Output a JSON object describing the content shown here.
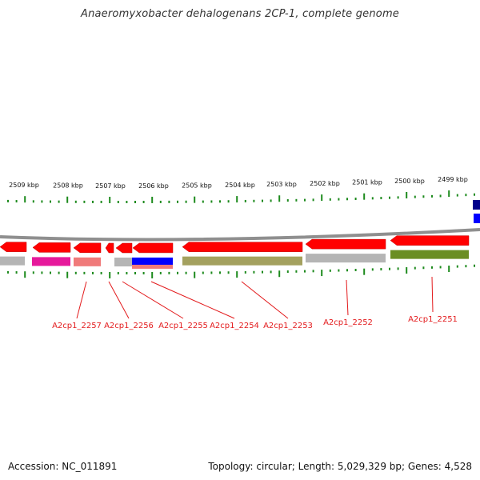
{
  "title": "Anaeromyxobacter dehalogenans 2CP-1, complete genome",
  "footer": {
    "accession": "Accession: NC_011891",
    "summary": "Topology: circular; Length: 5,029,329 bp; Genes: 4,528"
  },
  "colors": {
    "tick": "#1d8a1d",
    "label_line": "#e31a1c",
    "label_text": "#e31a1c",
    "backbone": "#8f8f8f",
    "forward_gene": "#ff0000",
    "navy": "#00008b",
    "blue": "#0000ff",
    "magenta": "#e6199b",
    "salmon": "#f07a7a",
    "olive": "#a4a15f",
    "grey": "#b5b5b5",
    "green": "#6b8e23"
  },
  "scale_labels": [
    "2509 kbp",
    "2508 kbp",
    "2507 kbp",
    "2506 kbp",
    "2505 kbp",
    "2504 kbp",
    "2503 kbp",
    "2502 kbp",
    "2501 kbp",
    "2500 kbp",
    "2499 kbp"
  ],
  "gene_labels": [
    "A2cp1_2257",
    "A2cp1_2256",
    "A2cp1_2255",
    "A2cp1_2254",
    "A2cp1_2253",
    "A2cp1_2252",
    "A2cp1_2251"
  ]
}
